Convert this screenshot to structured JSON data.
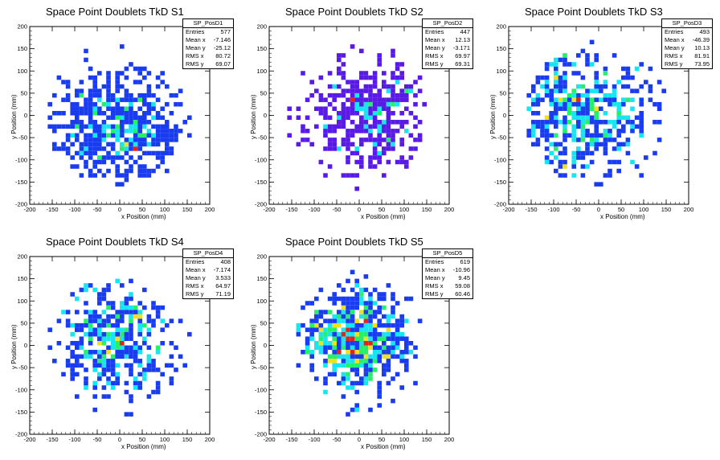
{
  "chart_data": [
    {
      "type": "heatmap",
      "title": "Space Point Doublets TkD S1",
      "xlabel": "x Position (mm)",
      "ylabel": "y Position (mm)",
      "xlim": [
        -200,
        200
      ],
      "ylim": [
        -200,
        200
      ],
      "xticks": [
        "-200",
        "-150",
        "-100",
        "-50",
        "0",
        "50",
        "100",
        "150",
        "200"
      ],
      "yticks": [
        "-200",
        "-150",
        "-100",
        "-50",
        "0",
        "50",
        "100",
        "150",
        "200"
      ],
      "stats": {
        "name": "SP_PosD1",
        "rows": [
          [
            "Entries",
            "577"
          ],
          [
            "Mean x",
            "-7.146"
          ],
          [
            "Mean y",
            "-25.12"
          ],
          [
            "RMS x",
            "80.72"
          ],
          [
            "RMS y",
            "69.07"
          ]
        ]
      },
      "entries": 577,
      "mean_x": -7.146,
      "mean_y": -25.12,
      "rms_x": 80.72,
      "rms_y": 69.07,
      "seed": 11,
      "palette": "blue"
    },
    {
      "type": "heatmap",
      "title": "Space Point Doublets TkD S2",
      "xlabel": "x Position (mm)",
      "ylabel": "y Position (mm)",
      "xlim": [
        -200,
        200
      ],
      "ylim": [
        -200,
        200
      ],
      "xticks": [
        "-200",
        "-150",
        "-100",
        "-50",
        "0",
        "50",
        "100",
        "150",
        "200"
      ],
      "yticks": [
        "-200",
        "-150",
        "-100",
        "-50",
        "0",
        "50",
        "100",
        "150",
        "200"
      ],
      "stats": {
        "name": "SP_PosD2",
        "rows": [
          [
            "Entries",
            "447"
          ],
          [
            "Mean x",
            "12.13"
          ],
          [
            "Mean y",
            "-3.171"
          ],
          [
            "RMS x",
            "69.97"
          ],
          [
            "RMS y",
            "69.31"
          ]
        ]
      },
      "entries": 447,
      "mean_x": 12.13,
      "mean_y": -3.171,
      "rms_x": 69.97,
      "rms_y": 69.31,
      "seed": 23,
      "palette": "violet"
    },
    {
      "type": "heatmap",
      "title": "Space Point Doublets TkD S3",
      "xlabel": "x Position (mm)",
      "ylabel": "y Position (mm)",
      "xlim": [
        -200,
        200
      ],
      "ylim": [
        -200,
        200
      ],
      "xticks": [
        "-200",
        "-150",
        "-100",
        "-50",
        "0",
        "50",
        "100",
        "150",
        "200"
      ],
      "yticks": [
        "-200",
        "-150",
        "-100",
        "-50",
        "0",
        "50",
        "100",
        "150",
        "200"
      ],
      "stats": {
        "name": "SP_PosD3",
        "rows": [
          [
            "Entries",
            "493"
          ],
          [
            "Mean x",
            "-46.39"
          ],
          [
            "Mean y",
            "10.13"
          ],
          [
            "RMS x",
            "81.91"
          ],
          [
            "RMS y",
            "73.95"
          ]
        ]
      },
      "entries": 493,
      "mean_x": -46.39,
      "mean_y": 10.13,
      "rms_x": 81.91,
      "rms_y": 73.95,
      "seed": 37,
      "palette": "blue"
    },
    {
      "type": "heatmap",
      "title": "Space Point Doublets TkD S4",
      "xlabel": "x Position (mm)",
      "ylabel": "y Position (mm)",
      "xlim": [
        -200,
        200
      ],
      "ylim": [
        -200,
        200
      ],
      "xticks": [
        "-200",
        "-150",
        "-100",
        "-50",
        "0",
        "50",
        "100",
        "150",
        "200"
      ],
      "yticks": [
        "-200",
        "-150",
        "-100",
        "-50",
        "0",
        "50",
        "100",
        "150",
        "200"
      ],
      "stats": {
        "name": "SP_PosD4",
        "rows": [
          [
            "Entries",
            "408"
          ],
          [
            "Mean x",
            "-7.174"
          ],
          [
            "Mean y",
            "3.533"
          ],
          [
            "RMS x",
            "64.97"
          ],
          [
            "RMS y",
            "71.19"
          ]
        ]
      },
      "entries": 408,
      "mean_x": -7.174,
      "mean_y": 3.533,
      "rms_x": 64.97,
      "rms_y": 71.19,
      "seed": 51,
      "palette": "blue"
    },
    {
      "type": "heatmap",
      "title": "Space Point Doublets TkD S5",
      "xlabel": "x Position (mm)",
      "ylabel": "y Position (mm)",
      "xlim": [
        -200,
        200
      ],
      "ylim": [
        -200,
        200
      ],
      "xticks": [
        "-200",
        "-150",
        "-100",
        "-50",
        "0",
        "50",
        "100",
        "150",
        "200"
      ],
      "yticks": [
        "-200",
        "-150",
        "-100",
        "-50",
        "0",
        "50",
        "100",
        "150",
        "200"
      ],
      "stats": {
        "name": "SP_PosD5",
        "rows": [
          [
            "Entries",
            "619"
          ],
          [
            "Mean x",
            "-10.96"
          ],
          [
            "Mean y",
            "9.45"
          ],
          [
            "RMS x",
            "59.08"
          ],
          [
            "RMS y",
            "60.46"
          ]
        ]
      },
      "entries": 619,
      "mean_x": -10.96,
      "mean_y": 9.45,
      "rms_x": 59.08,
      "rms_y": 60.46,
      "seed": 67,
      "palette": "blue"
    }
  ],
  "colors": {
    "low": "#1a3cf0",
    "low_violet": "#5a1ae6",
    "mid": "#17e6f2",
    "mid2": "#25f06a",
    "high": "#f0e020",
    "max": "#e8221a"
  }
}
